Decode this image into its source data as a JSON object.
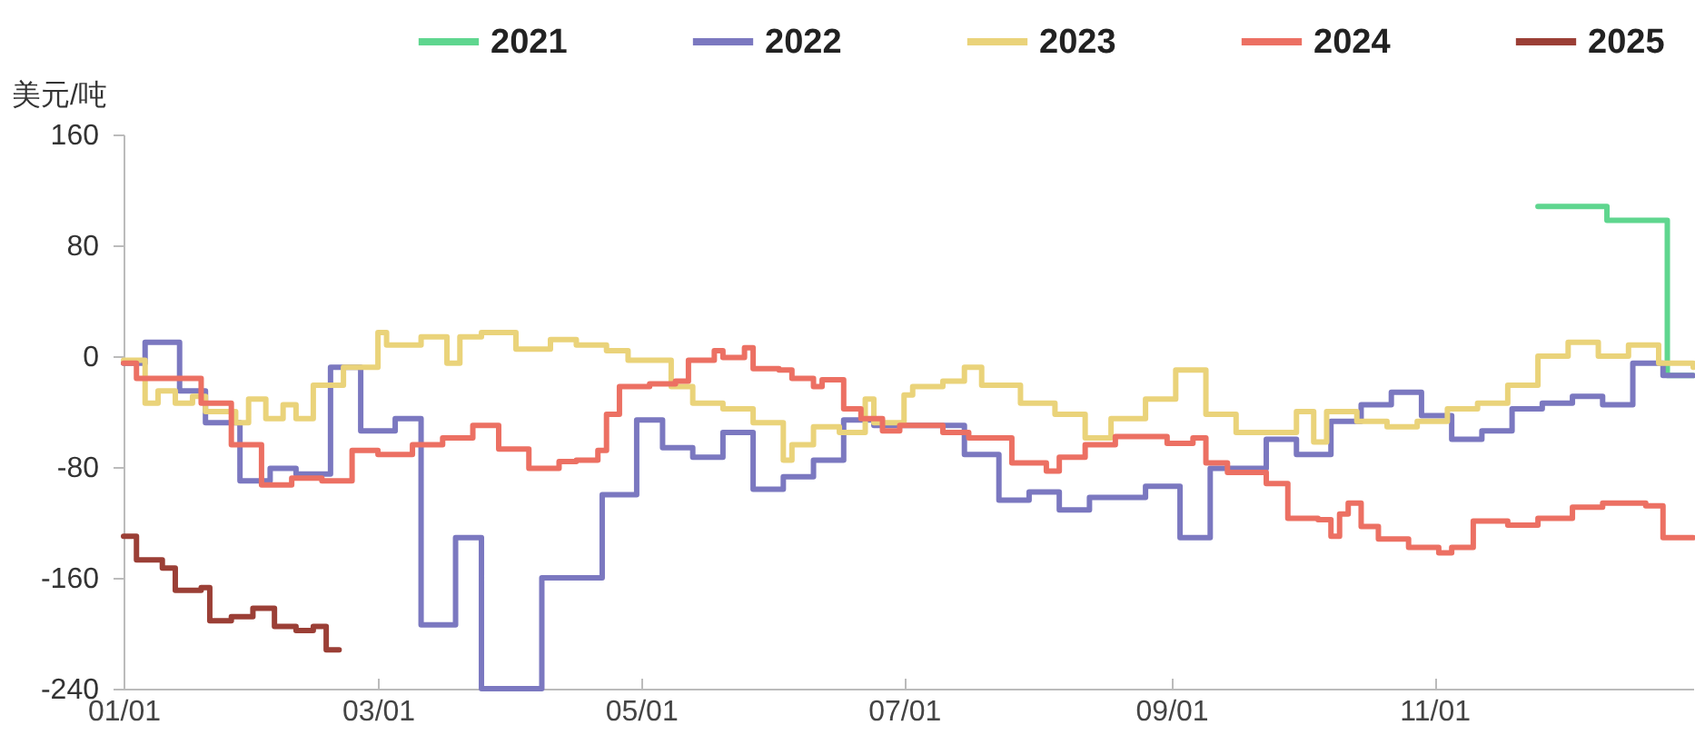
{
  "chart_data": {
    "type": "step",
    "ylabel": "美元/吨",
    "legend": "top",
    "grid": false,
    "xlim": [
      "--01-01",
      "--12-31"
    ],
    "ylim": [
      -240,
      160
    ],
    "yticks": [
      -240,
      -160,
      -80,
      0,
      80,
      160
    ],
    "xticks": [
      {
        "value": "--01-01",
        "label": "01/01"
      },
      {
        "value": "--03-01",
        "label": "03/01"
      },
      {
        "value": "--05-01",
        "label": "05/01"
      },
      {
        "value": "--07-01",
        "label": "07/01"
      },
      {
        "value": "--09-01",
        "label": "09/01"
      },
      {
        "value": "--11-01",
        "label": "11/01"
      }
    ],
    "series": [
      {
        "name": "2021",
        "color": "#5fd68f",
        "x": [
          "--11-25",
          "--12-11",
          "--12-25",
          "--12-31"
        ],
        "values": [
          108,
          98,
          -14,
          -14
        ]
      },
      {
        "name": "2022",
        "color": "#7b78c0",
        "x": [
          "--01-01",
          "--01-06",
          "--01-14",
          "--01-20",
          "--01-28",
          "--02-04",
          "--02-10",
          "--02-18",
          "--02-25",
          "--03-05",
          "--03-11",
          "--03-19",
          "--03-25",
          "--04-08",
          "--04-22",
          "--04-30",
          "--05-06",
          "--05-13",
          "--05-20",
          "--05-27",
          "--06-03",
          "--06-10",
          "--06-17",
          "--06-24",
          "--07-15",
          "--07-23",
          "--07-30",
          "--08-06",
          "--08-13",
          "--08-26",
          "--09-03",
          "--09-10",
          "--09-23",
          "--09-30",
          "--10-08",
          "--10-15",
          "--10-22",
          "--10-29",
          "--11-05",
          "--11-12",
          "--11-19",
          "--11-26",
          "--12-03",
          "--12-10",
          "--12-17",
          "--12-24",
          "--12-31"
        ],
        "values": [
          -5,
          10,
          -25,
          -48,
          -90,
          -81,
          -85,
          -8,
          -54,
          -45,
          -194,
          -131,
          -240,
          -160,
          -100,
          -46,
          -66,
          -73,
          -55,
          -96,
          -87,
          -75,
          -46,
          -50,
          -71,
          -104,
          -98,
          -111,
          -102,
          -94,
          -131,
          -81,
          -60,
          -71,
          -47,
          -35,
          -26,
          -43,
          -60,
          -54,
          -38,
          -34,
          -29,
          -35,
          -5,
          -14,
          -14
        ]
      },
      {
        "name": "2023",
        "color": "#ead37a",
        "x": [
          "--01-01",
          "--01-06",
          "--01-09",
          "--01-13",
          "--01-17",
          "--01-20",
          "--01-27",
          "--01-30",
          "--02-03",
          "--02-07",
          "--02-10",
          "--02-14",
          "--02-21",
          "--03-01",
          "--03-03",
          "--03-11",
          "--03-17",
          "--03-20",
          "--03-25",
          "--04-02",
          "--04-10",
          "--04-16",
          "--04-23",
          "--04-28",
          "--05-08",
          "--05-13",
          "--05-20",
          "--05-27",
          "--06-03",
          "--06-05",
          "--06-10",
          "--06-16",
          "--06-22",
          "--06-24",
          "--07-01",
          "--07-03",
          "--07-10",
          "--07-15",
          "--07-19",
          "--07-28",
          "--08-05",
          "--08-12",
          "--08-18",
          "--08-26",
          "--09-02",
          "--09-09",
          "--09-16",
          "--09-30",
          "--10-04",
          "--10-07",
          "--10-14",
          "--10-21",
          "--10-28",
          "--11-04",
          "--11-11",
          "--11-18",
          "--11-25",
          "--12-02",
          "--12-09",
          "--12-16",
          "--12-23",
          "--12-31"
        ],
        "values": [
          -3,
          -34,
          -25,
          -34,
          -29,
          -40,
          -48,
          -31,
          -45,
          -35,
          -45,
          -21,
          -8,
          17,
          8,
          14,
          -5,
          14,
          17,
          5,
          12,
          8,
          4,
          -3,
          -22,
          -34,
          -38,
          -48,
          -75,
          -64,
          -51,
          -55,
          -31,
          -48,
          -28,
          -22,
          -18,
          -8,
          -21,
          -34,
          -42,
          -59,
          -45,
          -31,
          -10,
          -42,
          -55,
          -40,
          -62,
          -40,
          -47,
          -51,
          -47,
          -38,
          -34,
          -21,
          0,
          10,
          0,
          8,
          -5,
          -8
        ]
      },
      {
        "name": "2024",
        "color": "#ec7063",
        "x": [
          "--01-01",
          "--01-04",
          "--01-19",
          "--01-26",
          "--02-02",
          "--02-09",
          "--02-16",
          "--02-23",
          "--03-01",
          "--03-09",
          "--03-16",
          "--03-23",
          "--03-29",
          "--04-05",
          "--04-12",
          "--04-16",
          "--04-21",
          "--04-23",
          "--04-26",
          "--05-03",
          "--05-09",
          "--05-12",
          "--05-18",
          "--05-20",
          "--05-25",
          "--05-27",
          "--06-02",
          "--06-05",
          "--06-10",
          "--06-12",
          "--06-17",
          "--06-21",
          "--06-26",
          "--06-30",
          "--07-10",
          "--07-16",
          "--07-26",
          "--08-03",
          "--08-06",
          "--08-12",
          "--08-19",
          "--08-31",
          "--09-06",
          "--09-09",
          "--09-14",
          "--09-23",
          "--09-28",
          "--10-05",
          "--10-08",
          "--10-10",
          "--10-12",
          "--10-15",
          "--10-19",
          "--10-26",
          "--11-02",
          "--11-05",
          "--11-10",
          "--11-18",
          "--11-25",
          "--12-03",
          "--12-10",
          "--12-20",
          "--12-24",
          "--12-31"
        ],
        "values": [
          -5,
          -16,
          -34,
          -64,
          -93,
          -88,
          -90,
          -68,
          -71,
          -64,
          -59,
          -50,
          -67,
          -81,
          -76,
          -75,
          -68,
          -42,
          -22,
          -20,
          -18,
          -3,
          4,
          -1,
          6,
          -9,
          -10,
          -16,
          -22,
          -17,
          -38,
          -45,
          -54,
          -50,
          -55,
          -59,
          -77,
          -83,
          -73,
          -64,
          -58,
          -63,
          -59,
          -77,
          -84,
          -92,
          -117,
          -118,
          -130,
          -114,
          -106,
          -123,
          -132,
          -138,
          -142,
          -138,
          -119,
          -122,
          -117,
          -109,
          -106,
          -108,
          -131,
          -131
        ]
      },
      {
        "name": "2025",
        "color": "#9b3f36",
        "x": [
          "--01-01",
          "--01-04",
          "--01-10",
          "--01-13",
          "--01-19",
          "--01-21",
          "--01-26",
          "--01-31",
          "--02-05",
          "--02-10",
          "--02-14",
          "--02-17",
          "--02-20"
        ],
        "values": [
          -130,
          -147,
          -153,
          -169,
          -167,
          -191,
          -188,
          -182,
          -195,
          -198,
          -195,
          -212,
          -212
        ]
      }
    ]
  }
}
